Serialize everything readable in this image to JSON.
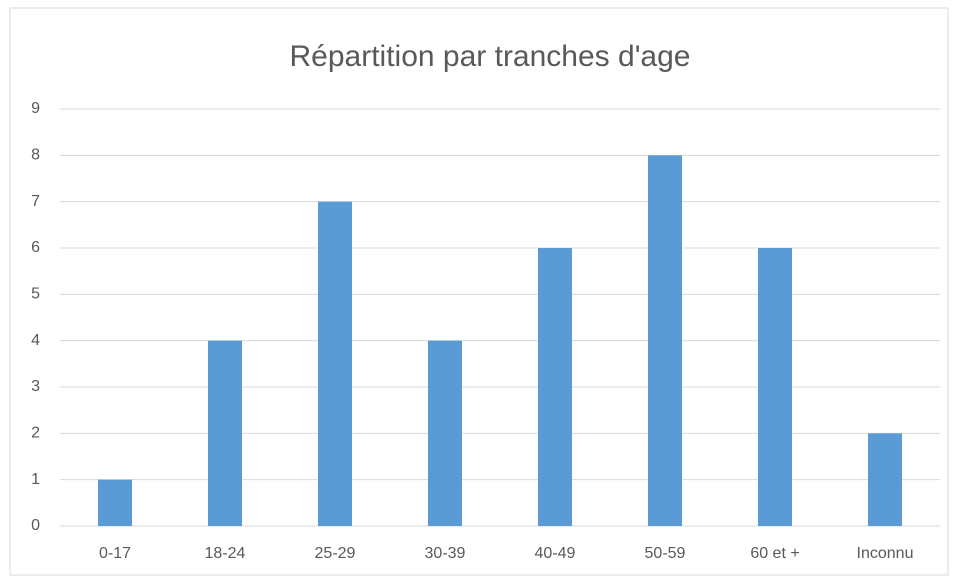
{
  "chart_data": {
    "type": "bar",
    "title": "Répartition par tranches d'age",
    "categories": [
      "0-17",
      "18-24",
      "25-29",
      "30-39",
      "40-49",
      "50-59",
      "60 et +",
      "Inconnu"
    ],
    "values": [
      1,
      4,
      7,
      4,
      6,
      8,
      6,
      2
    ],
    "color": "#5b9bd5",
    "ylim": [
      0,
      9
    ],
    "yticks": [
      0,
      1,
      2,
      3,
      4,
      5,
      6,
      7,
      8,
      9
    ],
    "grid": true
  }
}
